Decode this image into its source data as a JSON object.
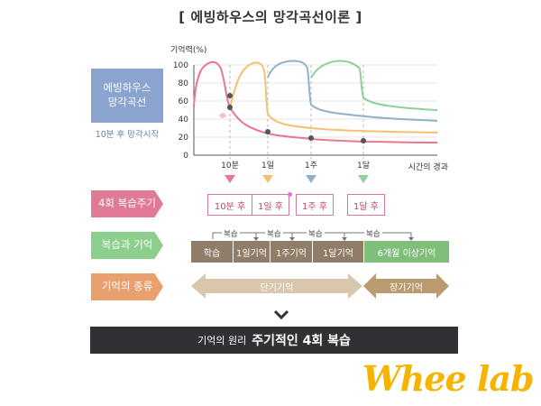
{
  "title": "[ 에빙하우스의 망각곡선이론 ]",
  "sidebar": {
    "curve_box": "에빙하우스\n망각곡선",
    "curve_caption": "10분 후 망각시작",
    "review_cycle_label": "4회 복습주기",
    "review_memory_label": "복습과 기억",
    "memory_type_label": "기억의 종류"
  },
  "chart_data": {
    "type": "line",
    "ylabel": "기억력(%)",
    "xlabel": "시간의 경과",
    "ylim": [
      0,
      100
    ],
    "yticks": [
      "0",
      "20",
      "40",
      "60",
      "80",
      "100"
    ],
    "xticks": [
      "10분",
      "1일",
      "1주",
      "1달"
    ],
    "grid": true,
    "series": [
      {
        "color": "#e8788f",
        "values": [
          {
            "x": "start",
            "y": 100
          },
          {
            "x": "10분",
            "y": 54
          },
          {
            "x": "1일",
            "y": 28
          },
          {
            "x": "1주",
            "y": 20
          },
          {
            "x": "1달",
            "y": 17
          },
          {
            "x": "end",
            "y": 15
          }
        ]
      },
      {
        "color": "#f2c272",
        "values": [
          {
            "x": "10분",
            "y": 54
          },
          {
            "x": "1일",
            "y": 100
          },
          {
            "x": "end",
            "y": 24
          }
        ]
      },
      {
        "color": "#8fb2c8",
        "values": [
          {
            "x": "1일",
            "y": 88
          },
          {
            "x": "1주",
            "y": 100
          },
          {
            "x": "end",
            "y": 40
          }
        ]
      },
      {
        "color": "#8fcf9a",
        "values": [
          {
            "x": "1주",
            "y": 88
          },
          {
            "x": "1달",
            "y": 100
          },
          {
            "x": "end",
            "y": 54
          }
        ]
      }
    ],
    "markers": [
      {
        "color": "#e8788f"
      },
      {
        "color": "#f2c272"
      },
      {
        "color": "#8fb2c8"
      },
      {
        "color": "#8fcf9a"
      }
    ]
  },
  "reviews": [
    "10분 후",
    "1일 후",
    "1주 후",
    "1달 후"
  ],
  "brackets": [
    "복습",
    "복습",
    "복습",
    "복습"
  ],
  "stages": [
    {
      "label": "학습",
      "color": "#8f7c69"
    },
    {
      "label": "1일기억",
      "color": "#8f7c69"
    },
    {
      "label": "1주기억",
      "color": "#8f7c69"
    },
    {
      "label": "1달기억",
      "color": "#8f7c69"
    },
    {
      "label": "6개월 이상기억",
      "color": "#7fbf7a"
    }
  ],
  "memory_types": {
    "short": "단기기억",
    "long": "장기기억"
  },
  "summary": {
    "prefix": "기억의 원리",
    "strong": "주기적인 4회 복습"
  },
  "logo": "Whee lab",
  "colors": {
    "blue_box": "#8aa3cf",
    "pink_box": "#e07a97",
    "green_box": "#8ccf8c",
    "orange_box": "#e8a06e",
    "short_arrow": "#d8c7ad",
    "long_arrow": "#b89b6e"
  }
}
